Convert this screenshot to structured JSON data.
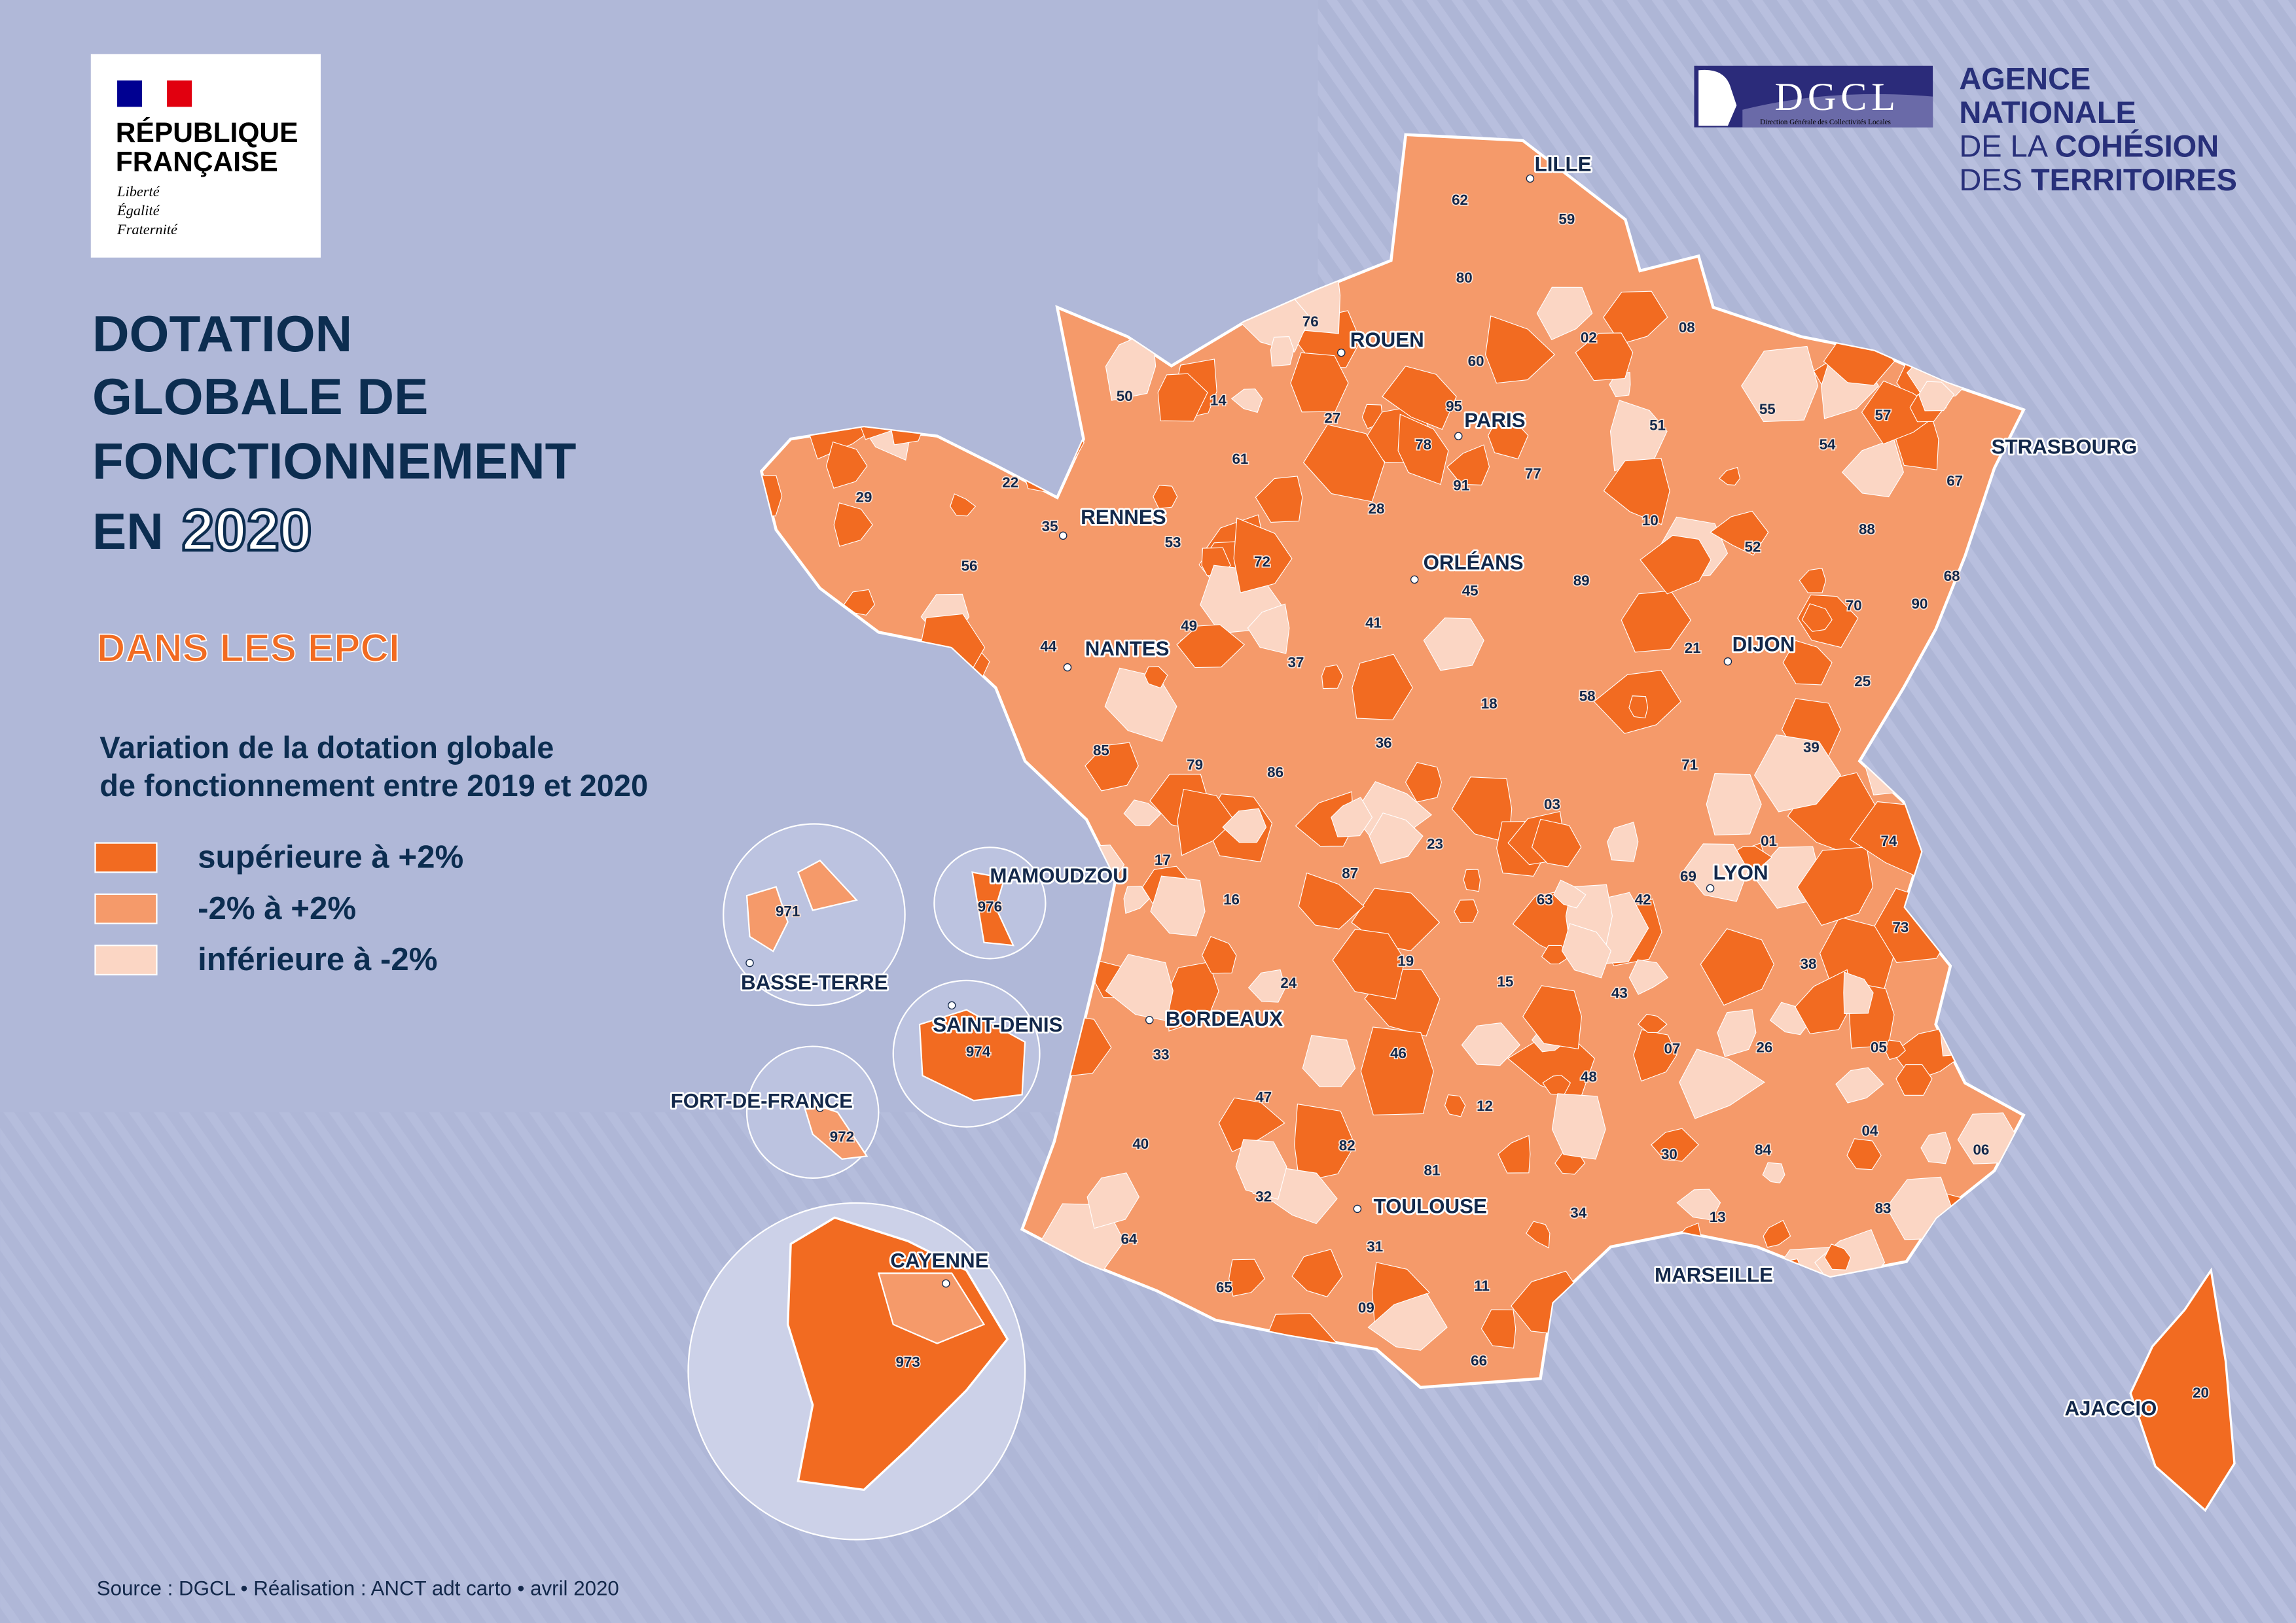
{
  "logo_rf": {
    "line1": "RÉPUBLIQUE",
    "line2": "FRANÇAISE",
    "motto": [
      "Liberté",
      "Égalité",
      "Fraternité"
    ]
  },
  "logo_dgcl": {
    "name": "DGCL",
    "subtitle": "Direction Générale des Collectivités Locales"
  },
  "logo_anct": {
    "line1": "AGENCE",
    "line2": "NATIONALE",
    "line3_light": "DE LA ",
    "line3_bold": "COHÉSION",
    "line4_light": "DES ",
    "line4_bold": "TERRITOIRES"
  },
  "title": {
    "lines": [
      "DOTATION",
      "GLOBALE DE",
      "FONCTIONNEMENT"
    ],
    "prefix": "EN",
    "year": "2020"
  },
  "subtitle": "DANS LES EPCI",
  "legend": {
    "title_lines": [
      "Variation de la dotation globale",
      "de fonctionnement entre 2019 et 2020"
    ],
    "items": [
      {
        "label": "supérieure à +2%",
        "color": "#f26b21"
      },
      {
        "label": "-2% à +2%",
        "color": "#f59a6a"
      },
      {
        "label": "inférieure à -2%",
        "color": "#fbd6c4"
      }
    ]
  },
  "cities": [
    "LILLE",
    "ROUEN",
    "PARIS",
    "STRASBOURG",
    "RENNES",
    "ORLÉANS",
    "NANTES",
    "DIJON",
    "LYON",
    "BORDEAUX",
    "TOULOUSE",
    "MARSEILLE",
    "AJACCIO",
    "MAMOUDZOU",
    "BASSE-TERRE",
    "SAINT-DENIS",
    "FORT-DE-FRANCE",
    "CAYENNE"
  ],
  "departments": [
    "62",
    "59",
    "80",
    "76",
    "02",
    "08",
    "60",
    "50",
    "14",
    "27",
    "95",
    "51",
    "55",
    "57",
    "54",
    "67",
    "29",
    "22",
    "61",
    "78",
    "77",
    "91",
    "35",
    "28",
    "53",
    "10",
    "52",
    "88",
    "56",
    "72",
    "45",
    "89",
    "68",
    "70",
    "90",
    "49",
    "41",
    "44",
    "37",
    "21",
    "25",
    "18",
    "58",
    "85",
    "79",
    "86",
    "36",
    "71",
    "39",
    "03",
    "01",
    "74",
    "23",
    "17",
    "87",
    "69",
    "16",
    "42",
    "63",
    "73",
    "38",
    "19",
    "24",
    "15",
    "43",
    "33",
    "46",
    "07",
    "26",
    "05",
    "47",
    "48",
    "12",
    "04",
    "40",
    "82",
    "30",
    "84",
    "06",
    "81",
    "32",
    "34",
    "13",
    "83",
    "64",
    "31",
    "65",
    "11",
    "09",
    "66",
    "20",
    "971",
    "976",
    "974",
    "972",
    "973"
  ],
  "source": "Source : DGCL • Réalisation : ANCT adt carto • avril 2020"
}
